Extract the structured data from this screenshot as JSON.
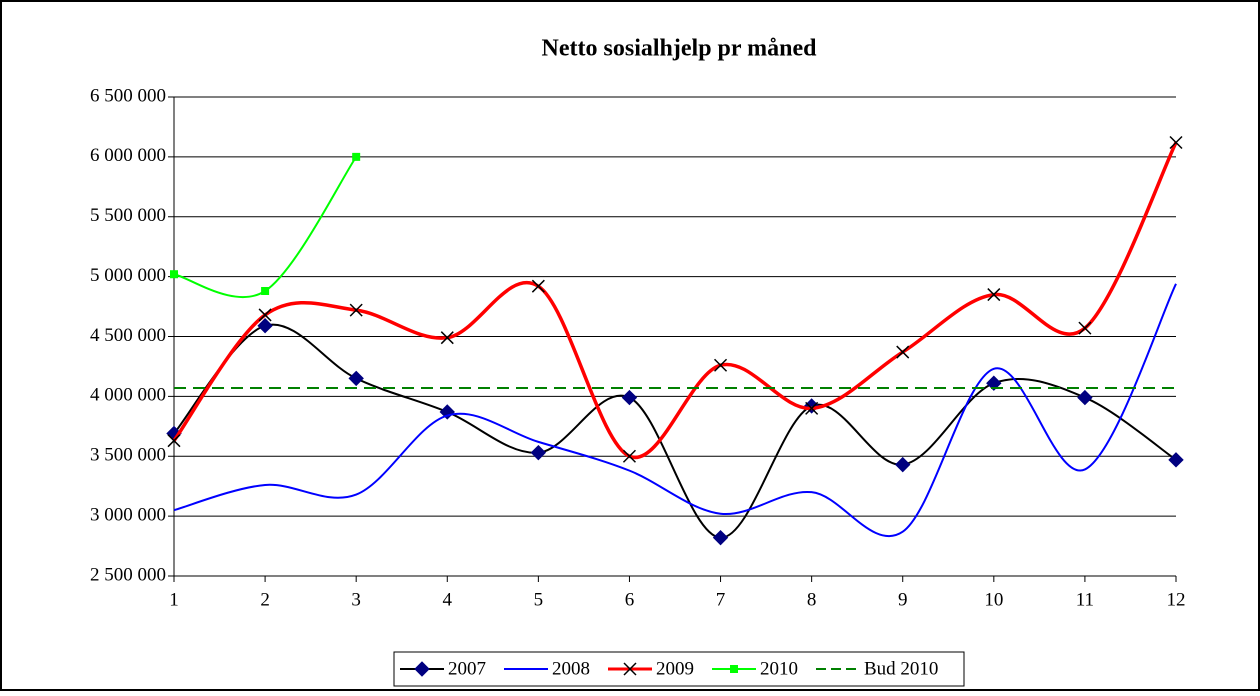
{
  "chart_data": {
    "type": "line",
    "title": "Netto sosialhjelp pr måned",
    "x": [
      1,
      2,
      3,
      4,
      5,
      6,
      7,
      8,
      9,
      10,
      11,
      12
    ],
    "xlim": [
      1,
      12
    ],
    "xticks": [
      1,
      2,
      3,
      4,
      5,
      6,
      7,
      8,
      9,
      10,
      11,
      12
    ],
    "ylim": [
      2500000,
      6500000
    ],
    "yticks": [
      {
        "value": 2500000,
        "label": "2 500 000"
      },
      {
        "value": 3000000,
        "label": "3 000 000"
      },
      {
        "value": 3500000,
        "label": "3 500 000"
      },
      {
        "value": 4000000,
        "label": "4 000 000"
      },
      {
        "value": 4500000,
        "label": "4 500 000"
      },
      {
        "value": 5000000,
        "label": "5 000 000"
      },
      {
        "value": 5500000,
        "label": "5 500 000"
      },
      {
        "value": 6000000,
        "label": "6 000 000"
      },
      {
        "value": 6500000,
        "label": "6 500 000"
      }
    ],
    "grid": true,
    "legend": "bottom",
    "series": [
      {
        "name": "2007",
        "color": "#000000",
        "marker": "diamond",
        "marker_color": "#000080",
        "smooth": true,
        "values": [
          3690000,
          4590000,
          4150000,
          3870000,
          3530000,
          3990000,
          2820000,
          3920000,
          3430000,
          4110000,
          3990000,
          3470000
        ]
      },
      {
        "name": "2008",
        "color": "#0000ff",
        "smooth": true,
        "values": [
          3050000,
          3260000,
          3180000,
          3840000,
          3620000,
          3380000,
          3020000,
          3200000,
          2870000,
          4230000,
          3390000,
          4940000
        ]
      },
      {
        "name": "2009",
        "color": "#ff0000",
        "marker": "x",
        "marker_color": "#000000",
        "smooth": true,
        "values": [
          3630000,
          4680000,
          4720000,
          4490000,
          4920000,
          3500000,
          4260000,
          3900000,
          4370000,
          4850000,
          4570000,
          6120000
        ]
      },
      {
        "name": "2010",
        "color": "#00ff00",
        "marker": "square",
        "marker_color": "#00ff00",
        "smooth": true,
        "values": [
          5020000,
          4880000,
          6000000,
          null,
          null,
          null,
          null,
          null,
          null,
          null,
          null,
          null
        ]
      },
      {
        "name": "Bud 2010",
        "color": "#008000",
        "dashed": true,
        "values": [
          4070000,
          4070000,
          4070000,
          4070000,
          4070000,
          4070000,
          4070000,
          4070000,
          4070000,
          4070000,
          4070000,
          4070000
        ]
      }
    ]
  }
}
